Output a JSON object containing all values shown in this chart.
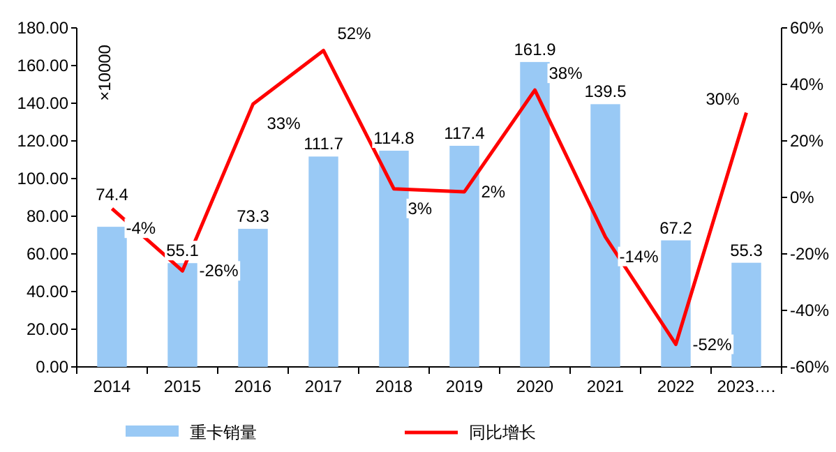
{
  "chart_data": {
    "type": "bar",
    "ylabel": "×10000",
    "categories": [
      "2014",
      "2015",
      "2016",
      "2017",
      "2018",
      "2019",
      "2020",
      "2021",
      "2022",
      "2023…."
    ],
    "series": [
      {
        "name": "重卡销量",
        "color": "#99c9f5",
        "values": [
          74.4,
          55.1,
          73.3,
          111.7,
          114.8,
          117.4,
          161.9,
          139.5,
          67.2,
          55.3
        ],
        "value_labels": [
          "74.4",
          "55.1",
          "73.3",
          "111.7",
          "114.8",
          "117.4",
          "161.9",
          "139.5",
          "67.2",
          "55.3"
        ]
      },
      {
        "name": "同比增长",
        "type": "line",
        "axis": "y2",
        "color": "#ff0000",
        "values": [
          -4,
          -26,
          33,
          52,
          3,
          2,
          38,
          -14,
          -52,
          30
        ],
        "value_labels": [
          "-4%",
          "-26%",
          "33%",
          "52%",
          "3%",
          "2%",
          "38%",
          "-14%",
          "-52%",
          "30%"
        ]
      }
    ],
    "ylim": [
      0,
      180
    ],
    "yticks": [
      {
        "value": 0,
        "label": "0.00"
      },
      {
        "value": 20,
        "label": "20.00"
      },
      {
        "value": 40,
        "label": "40.00"
      },
      {
        "value": 60,
        "label": "60.00"
      },
      {
        "value": 80,
        "label": "80.00"
      },
      {
        "value": 100,
        "label": "100.00"
      },
      {
        "value": 120,
        "label": "120.00"
      },
      {
        "value": 140,
        "label": "140.00"
      },
      {
        "value": 160,
        "label": "160.00"
      },
      {
        "value": 180,
        "label": "180.00"
      }
    ],
    "y2lim": [
      -60,
      60
    ],
    "y2ticks": [
      {
        "value": -60,
        "label": "-60%"
      },
      {
        "value": -40,
        "label": "-40%"
      },
      {
        "value": -20,
        "label": "-20%"
      },
      {
        "value": 0,
        "label": "0%"
      },
      {
        "value": 20,
        "label": "20%"
      },
      {
        "value": 40,
        "label": "40%"
      },
      {
        "value": 60,
        "label": "60%"
      }
    ],
    "legend": "bottom",
    "marker": "none"
  }
}
